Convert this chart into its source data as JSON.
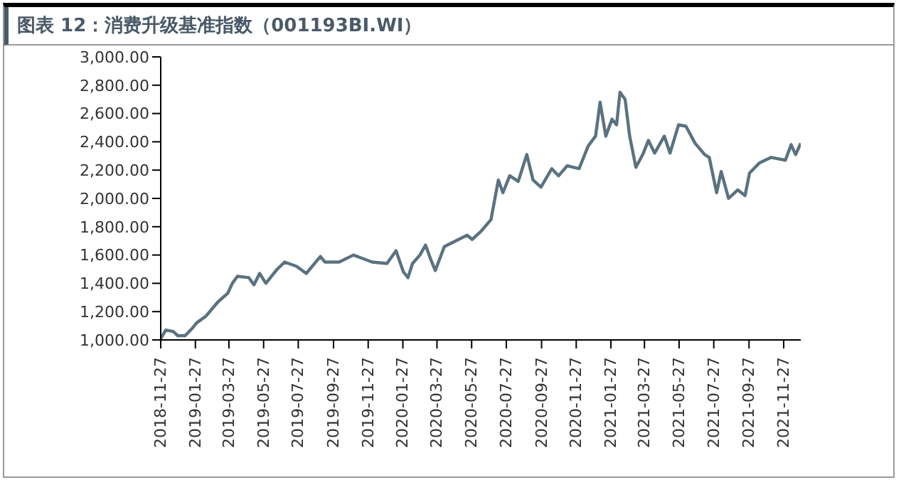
{
  "chart_data": {
    "type": "line",
    "title": "图表 12：消费升级基准指数（001193BI.WI）",
    "x": [
      "2018-11-27",
      "2018-12-06",
      "2018-12-19",
      "2018-12-27",
      "2019-01-09",
      "2019-01-21",
      "2019-01-29",
      "2019-02-15",
      "2019-03-08",
      "2019-03-25",
      "2019-04-02",
      "2019-04-11",
      "2019-05-01",
      "2019-05-10",
      "2019-05-20",
      "2019-05-31",
      "2019-06-12",
      "2019-06-20",
      "2019-07-03",
      "2019-07-24",
      "2019-08-10",
      "2019-09-04",
      "2019-09-12",
      "2019-10-07",
      "2019-11-01",
      "2019-12-04",
      "2019-12-30",
      "2020-01-15",
      "2020-01-28",
      "2020-02-05",
      "2020-02-13",
      "2020-02-26",
      "2020-03-07",
      "2020-03-15",
      "2020-03-24",
      "2020-04-09",
      "2020-04-29",
      "2020-05-19",
      "2020-05-28",
      "2020-06-13",
      "2020-06-30",
      "2020-07-13",
      "2020-07-21",
      "2020-08-02",
      "2020-08-17",
      "2020-09-01",
      "2020-09-12",
      "2020-09-26",
      "2020-10-15",
      "2020-10-27",
      "2020-11-11",
      "2020-12-02",
      "2020-12-18",
      "2020-12-31",
      "2021-01-08",
      "2021-01-18",
      "2021-01-29",
      "2021-02-06",
      "2021-02-12",
      "2021-02-21",
      "2021-03-01",
      "2021-03-12",
      "2021-03-24",
      "2021-04-03",
      "2021-04-14",
      "2021-05-01",
      "2021-05-11",
      "2021-05-26",
      "2021-06-08",
      "2021-06-24",
      "2021-07-11",
      "2021-07-19",
      "2021-08-01",
      "2021-08-09",
      "2021-08-22",
      "2021-09-07",
      "2021-09-20",
      "2021-09-28",
      "2021-10-15",
      "2021-11-05",
      "2021-11-30",
      "2021-12-10",
      "2021-12-18",
      "2021-12-27"
    ],
    "series": [
      {
        "color": "#5a7280",
        "values": [
          1010,
          1070,
          1060,
          1030,
          1030,
          1080,
          1120,
          1170,
          1270,
          1330,
          1400,
          1450,
          1440,
          1390,
          1470,
          1400,
          1460,
          1500,
          1550,
          1520,
          1470,
          1590,
          1550,
          1550,
          1600,
          1550,
          1540,
          1630,
          1480,
          1440,
          1540,
          1600,
          1670,
          1580,
          1490,
          1660,
          1700,
          1740,
          1710,
          1770,
          1850,
          2130,
          2040,
          2160,
          2120,
          2310,
          2130,
          2080,
          2210,
          2160,
          2230,
          2210,
          2370,
          2440,
          2680,
          2440,
          2560,
          2520,
          2750,
          2700,
          2440,
          2220,
          2310,
          2410,
          2320,
          2440,
          2320,
          2520,
          2510,
          2390,
          2310,
          2290,
          2040,
          2190,
          2000,
          2060,
          2020,
          2180,
          2250,
          2290,
          2270,
          2380,
          2310,
          2390
        ]
      }
    ],
    "xlim": [
      "2018-11-27",
      "2021-12-27"
    ],
    "xticks": [
      "2018-11-27",
      "2019-01-27",
      "2019-03-27",
      "2019-05-27",
      "2019-07-27",
      "2019-09-27",
      "2019-11-27",
      "2020-01-27",
      "2020-03-27",
      "2020-05-27",
      "2020-07-27",
      "2020-09-27",
      "2020-11-27",
      "2021-01-27",
      "2021-03-27",
      "2021-05-27",
      "2021-07-27",
      "2021-09-27",
      "2021-11-27"
    ],
    "ylim": [
      1000,
      3000
    ],
    "yticks": [
      {
        "value": 1000,
        "label": "1,000.00"
      },
      {
        "value": 1200,
        "label": "1,200.00"
      },
      {
        "value": 1400,
        "label": "1,400.00"
      },
      {
        "value": 1600,
        "label": "1,600.00"
      },
      {
        "value": 1800,
        "label": "1,800.00"
      },
      {
        "value": 2000,
        "label": "2,000.00"
      },
      {
        "value": 2200,
        "label": "2,200.00"
      },
      {
        "value": 2400,
        "label": "2,400.00"
      },
      {
        "value": 2600,
        "label": "2,600.00"
      },
      {
        "value": 2800,
        "label": "2,800.00"
      },
      {
        "value": 3000,
        "label": "3,000.00"
      }
    ],
    "grid": false,
    "legend": false,
    "marker": "none",
    "line_style": "solid"
  }
}
